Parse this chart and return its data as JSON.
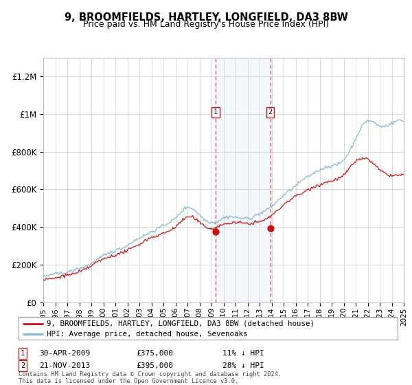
{
  "title": "9, BROOMFIELDS, HARTLEY, LONGFIELD, DA3 8BW",
  "subtitle": "Price paid vs. HM Land Registry's House Price Index (HPI)",
  "bg_color": "#ffffff",
  "plot_bg_color": "#ffffff",
  "grid_color": "#cccccc",
  "hpi_color": "#7bafd4",
  "price_color": "#cc1111",
  "sale1_x": 2009.33,
  "sale1_price": 375000,
  "sale2_x": 2013.9,
  "sale2_price": 395000,
  "sale1_label": "1",
  "sale2_label": "2",
  "sale1_date": "30-APR-2009",
  "sale1_amount": "£375,000",
  "sale1_hpi": "11% ↓ HPI",
  "sale2_date": "21-NOV-2013",
  "sale2_amount": "£395,000",
  "sale2_hpi": "28% ↓ HPI",
  "legend_line1": "9, BROOMFIELDS, HARTLEY, LONGFIELD, DA3 8BW (detached house)",
  "legend_line2": "HPI: Average price, detached house, Sevenoaks",
  "footnote": "Contains HM Land Registry data © Crown copyright and database right 2024.\nThis data is licensed under the Open Government Licence v3.0.",
  "xmin": 1995,
  "xmax": 2025,
  "ymin": 0,
  "ymax": 1300000,
  "yticks": [
    0,
    200000,
    400000,
    600000,
    800000,
    1000000,
    1200000
  ],
  "ytick_labels": [
    "£0",
    "£200K",
    "£400K",
    "£600K",
    "£800K",
    "£1M",
    "£1.2M"
  ],
  "xticks": [
    1995,
    1996,
    1997,
    1998,
    1999,
    2000,
    2001,
    2002,
    2003,
    2004,
    2005,
    2006,
    2007,
    2008,
    2009,
    2010,
    2011,
    2012,
    2013,
    2014,
    2015,
    2016,
    2017,
    2018,
    2019,
    2020,
    2021,
    2022,
    2023,
    2024,
    2025
  ]
}
